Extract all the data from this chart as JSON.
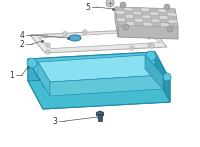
{
  "bg_color": "#ffffff",
  "pan_color": "#55c8e0",
  "pan_top_color": "#70d8ee",
  "pan_side_left_color": "#3ab0c8",
  "pan_side_right_color": "#2898b0",
  "pan_side_front_color": "#45bcd0",
  "pan_inner_color": "#88e0f0",
  "pan_inner_wall_color": "#55c0d5",
  "pan_edge_color": "#2288aa",
  "gasket_color": "#e8e8e8",
  "gasket_edge_color": "#aaaaaa",
  "filter_top_color": "#d5d5d5",
  "filter_side_color": "#b8b8b8",
  "filter_edge_color": "#999999",
  "bolt_blue_color": "#55aacc",
  "drain_color": "#446688",
  "line_color": "#555555",
  "label_fontsize": 5.5,
  "figsize": [
    2.0,
    1.47
  ],
  "dpi": 100
}
